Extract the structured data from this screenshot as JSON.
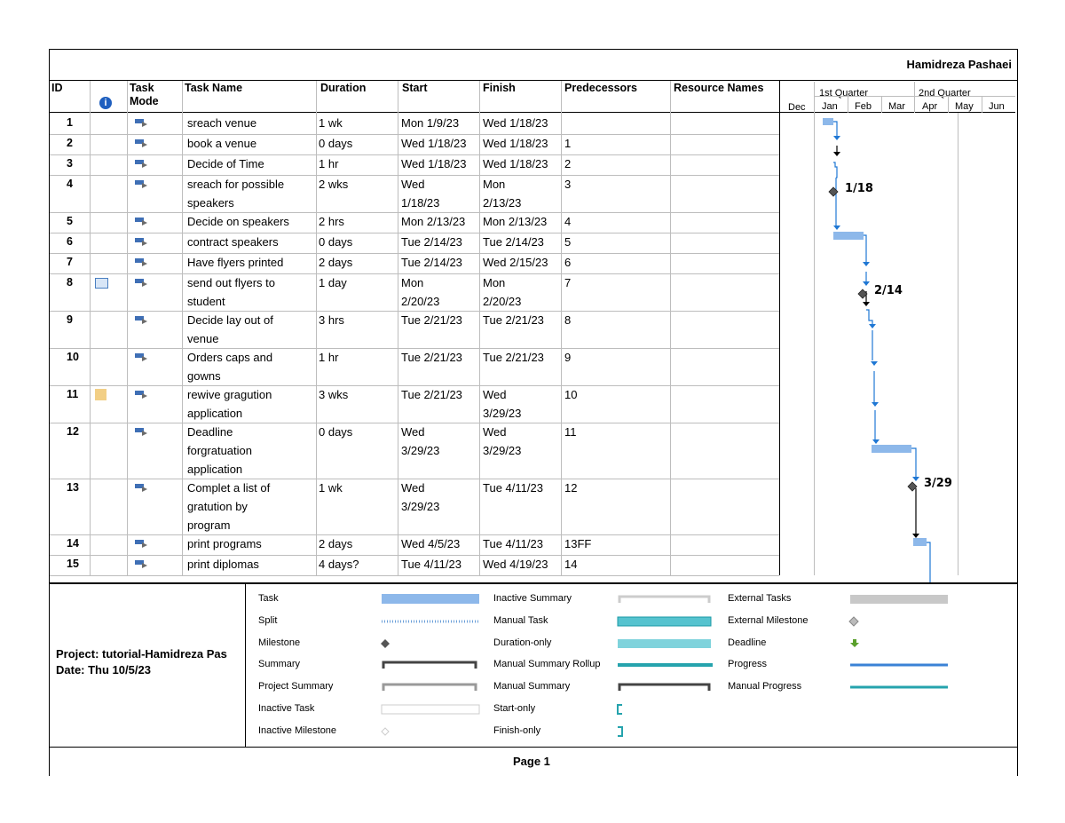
{
  "header": {
    "author": "Hamidreza Pashaei"
  },
  "table": {
    "columns": {
      "id": "ID",
      "mode": "Task\nMode",
      "name": "Task Name",
      "duration": "Duration",
      "start": "Start",
      "finish": "Finish",
      "predecessors": "Predecessors",
      "resources": "Resource Names"
    },
    "rows": [
      {
        "id": "1",
        "name": "sreach venue",
        "duration": "1 wk",
        "start": "Mon 1/9/23",
        "finish": "Wed 1/18/23",
        "pred": ""
      },
      {
        "id": "2",
        "name": "book a venue",
        "duration": "0 days",
        "start": "Wed 1/18/23",
        "finish": "Wed 1/18/23",
        "pred": "1"
      },
      {
        "id": "3",
        "name": "Decide of Time",
        "duration": "1 hr",
        "start": "Wed 1/18/23",
        "finish": "Wed 1/18/23",
        "pred": "2"
      },
      {
        "id": "4",
        "name": "sreach for possible\nspeakers",
        "duration": "2 wks",
        "start": "Wed\n1/18/23",
        "finish": "Mon\n2/13/23",
        "pred": "3"
      },
      {
        "id": "5",
        "name": "Decide on speakers",
        "duration": "2 hrs",
        "start": "Mon 2/13/23",
        "finish": "Mon 2/13/23",
        "pred": "4"
      },
      {
        "id": "6",
        "name": "contract speakers",
        "duration": "0 days",
        "start": "Tue 2/14/23",
        "finish": "Tue 2/14/23",
        "pred": "5"
      },
      {
        "id": "7",
        "name": "Have flyers printed",
        "duration": "2 days",
        "start": "Tue 2/14/23",
        "finish": "Wed 2/15/23",
        "pred": "6"
      },
      {
        "id": "8",
        "name": "send out flyers to\nstudent",
        "duration": "1 day",
        "start": "Mon\n2/20/23",
        "finish": "Mon\n2/20/23",
        "pred": "7"
      },
      {
        "id": "9",
        "name": "Decide lay out of\nvenue",
        "duration": "3 hrs",
        "start": "Tue 2/21/23",
        "finish": "Tue 2/21/23",
        "pred": "8"
      },
      {
        "id": "10",
        "name": "Orders caps and\ngowns",
        "duration": "1 hr",
        "start": "Tue 2/21/23",
        "finish": "Tue 2/21/23",
        "pred": "9"
      },
      {
        "id": "11",
        "name": "rewive gragution\napplication",
        "duration": "3 wks",
        "start": "Tue 2/21/23",
        "finish": "Wed\n3/29/23",
        "pred": "10"
      },
      {
        "id": "12",
        "name": "Deadline\nforgratuation\napplication",
        "duration": "0 days",
        "start": "Wed\n3/29/23",
        "finish": "Wed\n3/29/23",
        "pred": "11"
      },
      {
        "id": "13",
        "name": "Complet a list of\ngratution by\nprogram",
        "duration": "1 wk",
        "start": "Wed\n3/29/23",
        "finish": "Tue 4/11/23",
        "pred": "12"
      },
      {
        "id": "14",
        "name": "print programs",
        "duration": "2 days",
        "start": "Wed 4/5/23",
        "finish": "Tue 4/11/23",
        "pred": "13FF"
      },
      {
        "id": "15",
        "name": "print diplomas",
        "duration": "4 days?",
        "start": "Tue 4/11/23",
        "finish": "Wed 4/19/23",
        "pred": "14"
      }
    ]
  },
  "timescale": {
    "quarters": [
      "1st Quarter",
      "2nd Quarter"
    ],
    "months": [
      "Dec",
      "Jan",
      "Feb",
      "Mar",
      "Apr",
      "May",
      "Jun"
    ]
  },
  "gantt": {
    "milestone_labels": [
      "1/18",
      "2/14",
      "3/29"
    ],
    "bar_color": "#8db8ea",
    "link_color": "#1f77d4"
  },
  "footer": {
    "project": "Project: tutorial-Hamidreza Pas",
    "date": "Date: Thu 10/5/23",
    "page": "Page 1"
  },
  "legend": {
    "col1": [
      "Task",
      "Split",
      "Milestone",
      "Summary",
      "Project Summary",
      "Inactive Task",
      "Inactive Milestone"
    ],
    "col2": [
      "Inactive Summary",
      "Manual Task",
      "Duration-only",
      "Manual Summary Rollup",
      "Manual Summary",
      "Start-only",
      "Finish-only"
    ],
    "col3": [
      "External Tasks",
      "External Milestone",
      "Deadline",
      "Progress",
      "Manual Progress"
    ]
  }
}
